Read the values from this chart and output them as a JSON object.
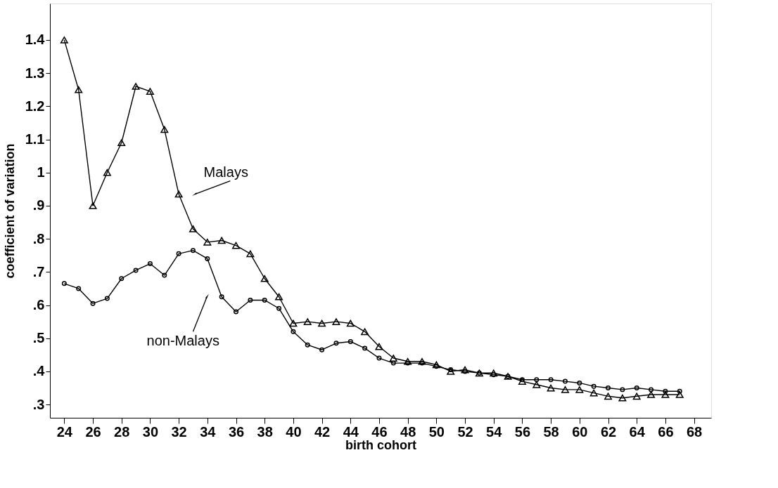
{
  "chart_data": {
    "type": "line",
    "xlabel": "birth cohort",
    "ylabel": "coefficient of variation",
    "x": [
      24,
      25,
      26,
      27,
      28,
      29,
      30,
      31,
      32,
      33,
      34,
      35,
      36,
      37,
      38,
      39,
      40,
      41,
      42,
      43,
      44,
      45,
      46,
      47,
      48,
      49,
      50,
      51,
      52,
      53,
      54,
      55,
      56,
      57,
      58,
      59,
      60,
      61,
      62,
      63,
      64,
      65,
      66,
      67
    ],
    "series": [
      {
        "color": "#000000",
        "marker": "triangle",
        "values": [
          1.4,
          1.25,
          0.9,
          1.0,
          1.09,
          1.26,
          1.245,
          1.13,
          0.935,
          0.83,
          0.79,
          0.795,
          0.78,
          0.755,
          0.68,
          0.625,
          0.545,
          0.55,
          0.545,
          0.55,
          0.545,
          0.52,
          0.475,
          0.44,
          0.43,
          0.43,
          0.42,
          0.4,
          0.405,
          0.395,
          0.395,
          0.385,
          0.37,
          0.36,
          0.35,
          0.345,
          0.345,
          0.335,
          0.325,
          0.32,
          0.325,
          0.33,
          0.33,
          0.33
        ]
      },
      {
        "color": "#000000",
        "marker": "circle",
        "values": [
          0.665,
          0.65,
          0.605,
          0.62,
          0.68,
          0.705,
          0.725,
          0.69,
          0.755,
          0.765,
          0.74,
          0.625,
          0.58,
          0.615,
          0.615,
          0.59,
          0.52,
          0.48,
          0.465,
          0.485,
          0.49,
          0.47,
          0.44,
          0.425,
          0.425,
          0.425,
          0.415,
          0.405,
          0.4,
          0.395,
          0.39,
          0.385,
          0.375,
          0.375,
          0.375,
          0.37,
          0.365,
          0.355,
          0.35,
          0.345,
          0.35,
          0.345,
          0.34,
          0.34
        ]
      }
    ],
    "xlim": [
      23,
      69.2
    ],
    "xticks": [
      24,
      26,
      28,
      30,
      32,
      34,
      36,
      38,
      40,
      42,
      44,
      46,
      48,
      50,
      52,
      54,
      56,
      58,
      60,
      62,
      64,
      66,
      68
    ],
    "ylim": [
      0.26,
      1.51
    ],
    "yticks": [
      {
        "value": 0.3,
        "label": ".3"
      },
      {
        "value": 0.4,
        "label": ".4"
      },
      {
        "value": 0.5,
        "label": ".5"
      },
      {
        "value": 0.6,
        "label": ".6"
      },
      {
        "value": 0.7,
        "label": ".7"
      },
      {
        "value": 0.8,
        "label": ".8"
      },
      {
        "value": 0.9,
        "label": ".9"
      },
      1,
      1.1,
      1.2,
      1.3,
      1.4
    ],
    "annotations": [
      {
        "text": "Malays",
        "x": 33,
        "y": 0.935
      },
      {
        "text": "non-Malays",
        "x": 34,
        "y": 0.63
      }
    ],
    "line_style": "solid"
  }
}
